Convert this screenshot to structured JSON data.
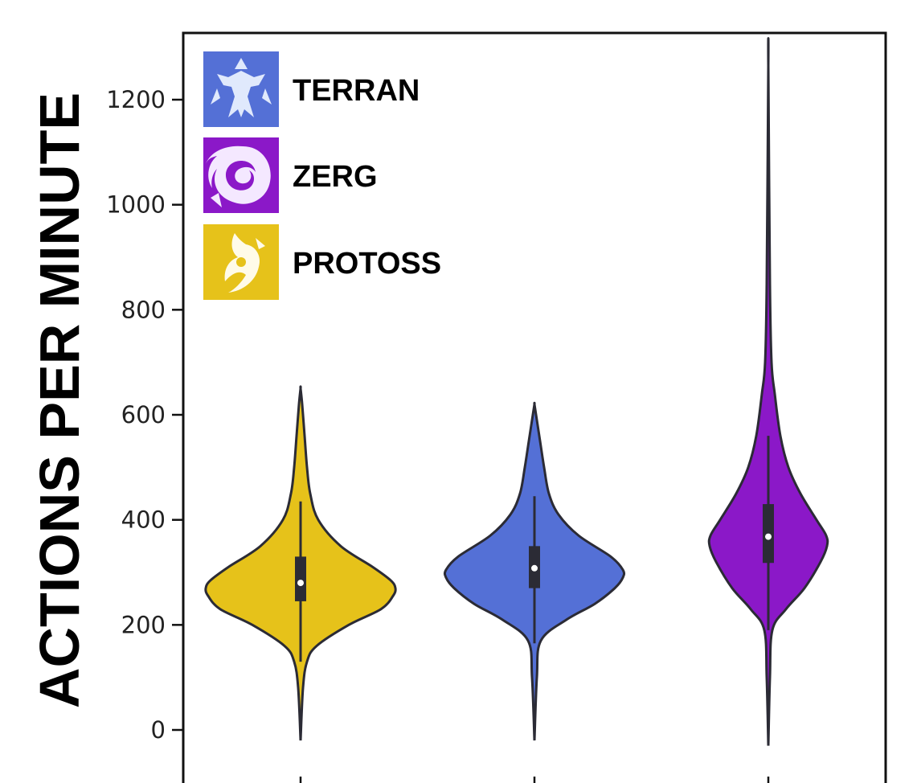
{
  "chart_data": {
    "type": "violin",
    "title": "",
    "xlabel": "",
    "ylabel": "ACTIONS PER MINUTE",
    "ylim": [
      -50,
      1320
    ],
    "yticks": [
      0,
      200,
      400,
      600,
      800,
      1000,
      1200
    ],
    "grid": false,
    "legend_position": "top-left",
    "legend": [
      {
        "label": "TERRAN",
        "color": "#5470d6",
        "icon": "terran-emblem-icon"
      },
      {
        "label": "ZERG",
        "color": "#8b18c8",
        "icon": "zerg-emblem-icon"
      },
      {
        "label": "PROTOSS",
        "color": "#e6c21a",
        "icon": "protoss-emblem-icon"
      }
    ],
    "series": [
      {
        "race": "PROTOSS",
        "color": "#e6c21a",
        "min": -20,
        "max": 650,
        "q1": 245,
        "median": 280,
        "q3": 330,
        "whisker_low": 130,
        "whisker_high": 435,
        "profile": [
          [
            -20,
            0
          ],
          [
            80,
            3
          ],
          [
            130,
            8
          ],
          [
            160,
            20
          ],
          [
            200,
            60
          ],
          [
            230,
            100
          ],
          [
            255,
            115
          ],
          [
            270,
            118
          ],
          [
            285,
            112
          ],
          [
            310,
            90
          ],
          [
            350,
            50
          ],
          [
            400,
            22
          ],
          [
            450,
            12
          ],
          [
            500,
            8
          ],
          [
            560,
            5
          ],
          [
            620,
            2
          ],
          [
            650,
            0
          ]
        ]
      },
      {
        "race": "TERRAN",
        "color": "#5470d6",
        "min": -20,
        "max": 620,
        "q1": 270,
        "median": 308,
        "q3": 350,
        "whisker_low": 165,
        "whisker_high": 445,
        "profile": [
          [
            -20,
            0
          ],
          [
            100,
            3
          ],
          [
            170,
            8
          ],
          [
            210,
            40
          ],
          [
            240,
            75
          ],
          [
            270,
            100
          ],
          [
            290,
            110
          ],
          [
            305,
            110
          ],
          [
            330,
            95
          ],
          [
            370,
            55
          ],
          [
            410,
            30
          ],
          [
            450,
            18
          ],
          [
            500,
            12
          ],
          [
            550,
            7
          ],
          [
            600,
            2
          ],
          [
            620,
            0
          ]
        ]
      },
      {
        "race": "ZERG",
        "color": "#8b18c8",
        "min": -30,
        "max": 1265,
        "q1": 318,
        "median": 368,
        "q3": 430,
        "whisker_low": 190,
        "whisker_high": 560,
        "profile": [
          [
            -30,
            0
          ],
          [
            100,
            2
          ],
          [
            190,
            5
          ],
          [
            230,
            22
          ],
          [
            270,
            45
          ],
          [
            320,
            65
          ],
          [
            350,
            73
          ],
          [
            370,
            72
          ],
          [
            400,
            60
          ],
          [
            450,
            40
          ],
          [
            500,
            25
          ],
          [
            560,
            15
          ],
          [
            640,
            8
          ],
          [
            700,
            4
          ],
          [
            850,
            2
          ],
          [
            1265,
            0
          ]
        ]
      }
    ]
  }
}
